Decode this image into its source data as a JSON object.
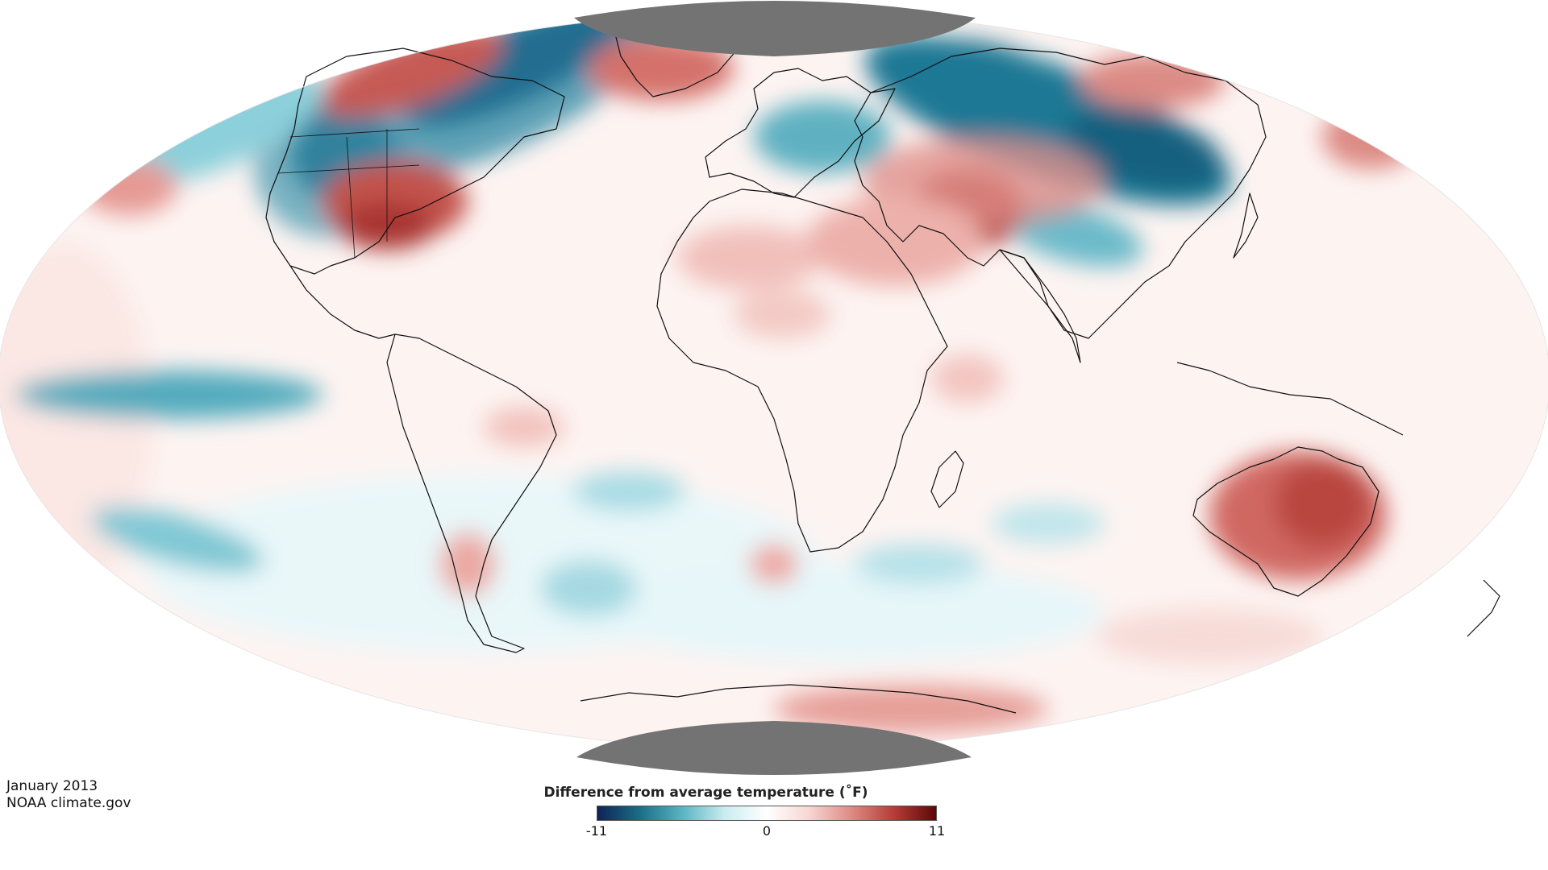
{
  "credits": {
    "date": "January 2013",
    "source": "NOAA climate.gov"
  },
  "legend": {
    "title": "Difference from average temperature (˚F)",
    "min_label": "-11",
    "mid_label": "0",
    "max_label": "11",
    "range": [
      -11,
      11
    ],
    "colors": [
      "#0f2356",
      "#1a6e86",
      "#58b4c2",
      "#c9ecf0",
      "#ffffff",
      "#f7d6d2",
      "#de8a84",
      "#b63c38",
      "#5c0808"
    ]
  },
  "map": {
    "projection": "Mollweide (centered on Greenwich)",
    "no_data_color": "#737373",
    "no_data_regions": [
      "north-pole",
      "south-pole"
    ]
  }
}
